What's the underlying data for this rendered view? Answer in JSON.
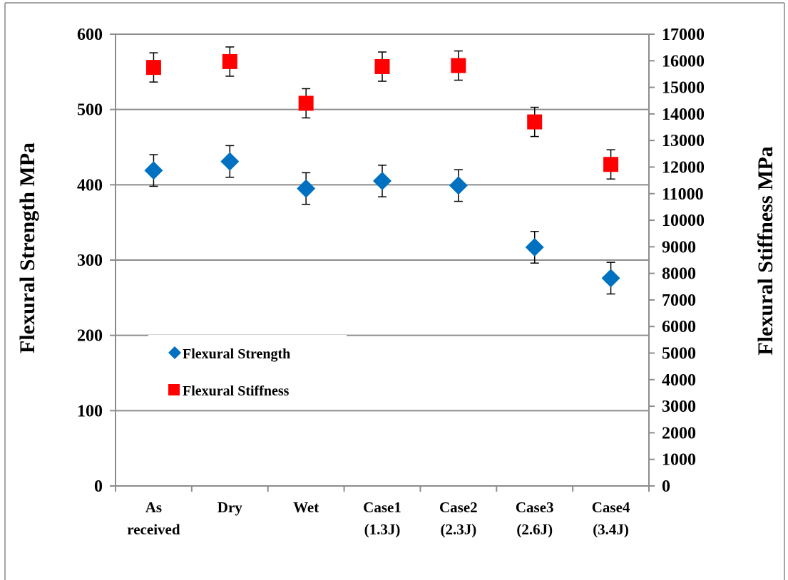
{
  "chart_data": {
    "type": "scatter",
    "categories": [
      [
        "As",
        "received"
      ],
      [
        "Dry",
        ""
      ],
      [
        "Wet",
        ""
      ],
      [
        "Case1",
        "(1.3J)"
      ],
      [
        "Case2",
        "(2.3J)"
      ],
      [
        "Case3",
        "(2.6J)"
      ],
      [
        "Case4",
        "(3.4J)"
      ]
    ],
    "ylabel": "Flexural Strength  MPa",
    "y2label": "Flexural Stiffness  MPa",
    "ylim": [
      0,
      600
    ],
    "y2lim": [
      0,
      17000
    ],
    "yticks": [
      "0",
      "100",
      "200",
      "300",
      "400",
      "500",
      "600"
    ],
    "y2ticks": [
      "0",
      "1000",
      "2000",
      "3000",
      "4000",
      "5000",
      "6000",
      "7000",
      "8000",
      "9000",
      "10000",
      "11000",
      "12000",
      "13000",
      "14000",
      "15000",
      "16000",
      "17000"
    ],
    "grid": true,
    "legend_position": "left-middle",
    "series": [
      {
        "name": "Flexural Strength",
        "axis": "left",
        "marker": "diamond",
        "color": "#0070C0",
        "values": [
          419,
          431,
          395,
          405,
          399,
          317,
          276
        ],
        "errors": [
          21,
          21,
          21,
          21,
          21,
          21,
          21
        ]
      },
      {
        "name": "Flexural Stiffness",
        "axis": "right",
        "marker": "square",
        "color": "#FF0000",
        "values": [
          15750,
          15970,
          14400,
          15780,
          15820,
          13700,
          12100
        ],
        "errors": [
          550,
          550,
          550,
          550,
          550,
          550,
          550
        ]
      }
    ]
  }
}
